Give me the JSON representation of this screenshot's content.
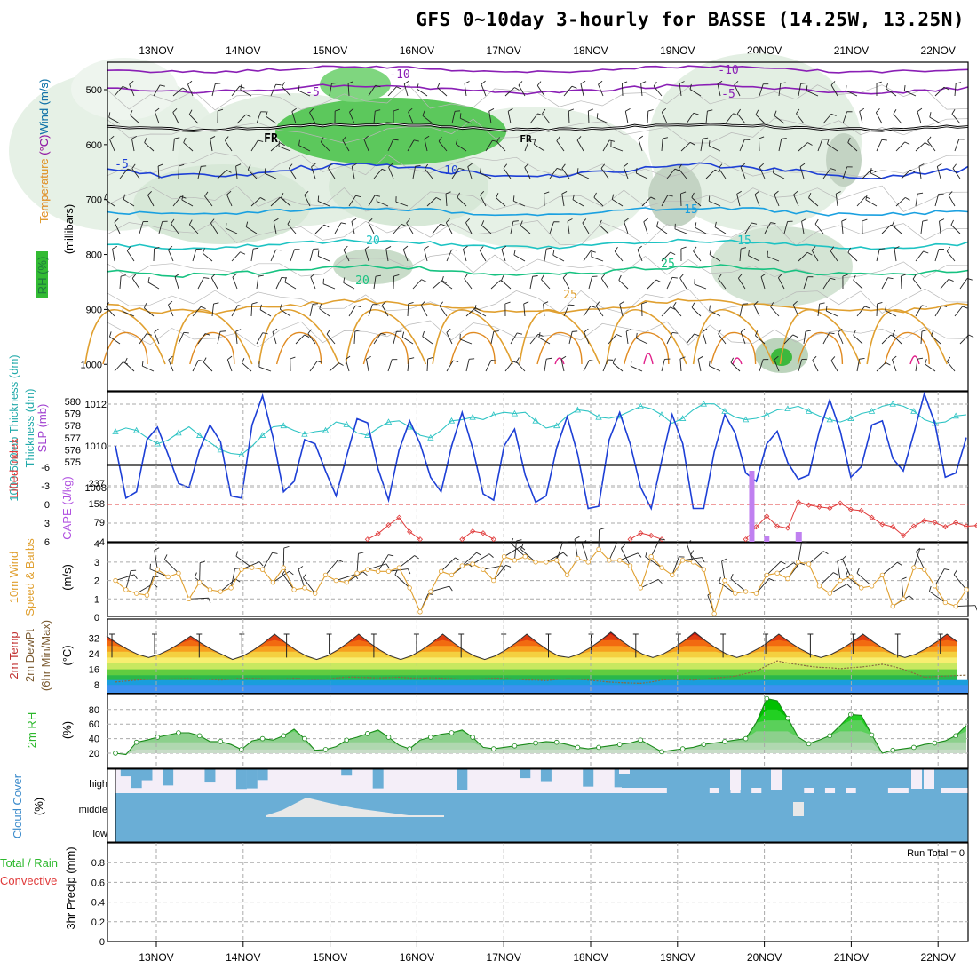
{
  "title": "GFS 0~10day 3-hourly for BASSE (14.25W, 13.25N)",
  "run_total_text": "Run Total = 0",
  "colors": {
    "purple": "#8a1fb5",
    "blue": "#1d3fd6",
    "lightblue": "#1aa0e0",
    "cyan": "#1ec3c3",
    "green": "#17c281",
    "orange": "#e0a030",
    "magenta": "#e0208a",
    "red": "#e03a3a",
    "cloud": "#6aaed6",
    "rhgreen": "#2db82d"
  },
  "chart_data": [
    {
      "type": "area",
      "name": "upper-air",
      "labels": {
        "wind": "Wind (m/s)",
        "temp": "Temperature (°C)",
        "rh": "RH (%)",
        "press": "(millibars)"
      },
      "dates": [
        "13NOV",
        "14NOV",
        "15NOV",
        "16NOV",
        "17NOV",
        "18NOV",
        "19NOV",
        "20NOV",
        "21NOV",
        "22NOV"
      ],
      "ylim": [
        1000,
        450
      ],
      "yticks": [
        "500",
        "600",
        "700",
        "800",
        "900",
        "1000"
      ],
      "isotherm_labels": [
        "-10",
        "-5",
        "FR",
        "-5",
        "10",
        "15",
        "20",
        "25"
      ]
    },
    {
      "type": "line",
      "name": "thickness-slp",
      "ylabel": "1000-500mb Thickness (dm)",
      "ylabel2": "SLP (mb)",
      "ticks_thk": [
        "580",
        "579",
        "578",
        "577",
        "576",
        "575"
      ],
      "ticks_slp": [
        "1012",
        "1010",
        "1008"
      ],
      "thickness": [
        577.5,
        577.8,
        577.6,
        577.0,
        576.5,
        576.8,
        577.4,
        577.9,
        577.2,
        576.6,
        576.0,
        575.7,
        575.6,
        576.3,
        577.2,
        577.9,
        578.0,
        577.6,
        577.3,
        577.5,
        577.6,
        578.3,
        578.1,
        577.4,
        577.2,
        577.8,
        578.3,
        578.4,
        577.9,
        577.2,
        577.0,
        577.6,
        578.4,
        578.5,
        578.7,
        578.5,
        578.9,
        579.1,
        579.0,
        579.1,
        578.4,
        577.8,
        578.0,
        578.8,
        579.3,
        579.2,
        578.7,
        578.6,
        578.8,
        579.2,
        579.6,
        579.4,
        578.9,
        578.2,
        578.6,
        579.3,
        579.8,
        579.8,
        579.2,
        578.7,
        578.5,
        578.6,
        578.9,
        579.3,
        579.4,
        579.6,
        579.2,
        578.8,
        578.5,
        578.3,
        578.6,
        579.0,
        579.2,
        579.6,
        579.8,
        579.6,
        579.2,
        578.5,
        578.2,
        578.3,
        578.8,
        578.9
      ],
      "slp": [
        1010.0,
        1007.5,
        1007.8,
        1010.3,
        1010.9,
        1009.6,
        1008.2,
        1008.0,
        1009.8,
        1011.0,
        1010.2,
        1007.6,
        1007.5,
        1011.0,
        1012.4,
        1010.4,
        1007.8,
        1008.3,
        1010.3,
        1010.1,
        1008.8,
        1007.6,
        1009.5,
        1011.3,
        1011.1,
        1008.9,
        1007.4,
        1009.8,
        1011.2,
        1010.1,
        1008.5,
        1007.8,
        1010.0,
        1011.6,
        1009.9,
        1007.7,
        1007.4,
        1010.0,
        1010.8,
        1008.6,
        1007.3,
        1007.6,
        1009.9,
        1011.4,
        1009.6,
        1007.0,
        1007.1,
        1010.3,
        1011.6,
        1010.1,
        1008.0,
        1007.0,
        1009.3,
        1011.5,
        1010.1,
        1007.0,
        1007.0,
        1009.7,
        1011.5,
        1010.6,
        1008.7,
        1008.3,
        1010.1,
        1010.7,
        1009.2,
        1008.4,
        1008.6,
        1010.7,
        1012.2,
        1010.7,
        1008.5,
        1009.0,
        1011.0,
        1011.2,
        1009.4,
        1008.8,
        1010.6,
        1012.5,
        1011.1,
        1008.5,
        1008.7,
        1010.4
      ]
    },
    {
      "type": "bar",
      "name": "cape-li",
      "ylabel": "Lifted Index",
      "ylabel2": "CAPE (J/kg)",
      "ticks_li": [
        "-6",
        "-3",
        "0",
        "3",
        "6"
      ],
      "ticks_cape": [
        "237",
        "158",
        "79",
        "4"
      ],
      "li_segments": [
        {
          "start": 24,
          "values": [
            5.6,
            4.7,
            3.3,
            2.1,
            4.4,
            5.6
          ]
        },
        {
          "start": 33,
          "values": [
            5.6,
            4.3,
            4.6,
            5.6
          ]
        },
        {
          "start": 49,
          "values": [
            5.6,
            4.6,
            5.0,
            5.6
          ]
        },
        {
          "start": 60,
          "values": [
            5.6,
            3.6,
            1.9,
            3.5,
            3.8,
            -0.4,
            0.1,
            0.4,
            0.6,
            -0.2,
            0.8,
            1.0,
            2.1,
            3.2,
            3.6,
            5.0,
            3.5,
            2.6,
            2.9,
            3.6,
            2.9,
            3.5,
            3.4,
            4.5,
            4.0,
            5.6
          ]
        }
      ],
      "cape_bars": [
        {
          "i": 61,
          "v": 0
        },
        {
          "i": 62,
          "v": 6
        },
        {
          "i": 64,
          "v": 0
        },
        {
          "i": 65,
          "v": 190
        },
        {
          "i": 66,
          "v": 0
        }
      ]
    },
    {
      "type": "line",
      "name": "wind-10m",
      "ylabel": "10m Wind Speed & Barbs",
      "units": "(m/s)",
      "ticks": [
        "4",
        "3",
        "2",
        "1",
        "0"
      ],
      "speed": [
        2.0,
        1.5,
        1.3,
        1.2,
        2.6,
        2.2,
        2.4,
        1.0,
        1.9,
        1.5,
        1.4,
        1.6,
        2.6,
        2.7,
        2.6,
        1.9,
        2.7,
        1.5,
        1.6,
        1.3,
        2.3,
        2.0,
        1.9,
        2.4,
        2.6,
        2.5,
        2.5,
        2.7,
        1.6,
        0.3,
        1.4,
        2.5,
        2.3,
        2.8,
        2.9,
        2.6,
        2.0,
        3.3,
        3.1,
        3.3,
        3.0,
        3.0,
        3.1,
        2.3,
        3.2,
        3.0,
        3.7,
        3.1,
        3.1,
        2.8,
        1.6,
        3.3,
        2.7,
        2.3,
        3.1,
        3.0,
        2.6,
        0.2,
        2.0,
        1.3,
        1.4,
        1.3,
        2.3,
        2.4,
        2.1,
        3.0,
        2.9,
        1.7,
        1.3,
        2.0,
        2.2,
        1.6,
        1.7,
        2.3,
        0.6,
        1.0,
        2.7,
        2.6,
        1.7,
        0.8,
        0.6,
        1.5
      ]
    },
    {
      "type": "area",
      "name": "temp-2m",
      "ylabel": "2m Temp",
      "ylabel2": "2m DewPt",
      "ylabel3": "(6hr Min/Max)",
      "units": "(°C)",
      "ticks": [
        "32",
        "24",
        "16",
        "8"
      ],
      "temp_max": [
        33,
        34,
        34,
        35,
        34
      ],
      "temp_min": [
        22,
        21,
        21,
        22,
        22
      ],
      "dew": [
        9.5,
        10.0,
        10.5,
        10.8,
        10.9,
        11.0,
        11.2,
        11.3,
        11.0,
        10.8,
        10.5,
        11.0,
        11.5,
        11.4,
        11.2,
        11.0,
        11.1,
        11.5,
        11.0,
        10.8,
        11.0,
        11.6,
        12.0,
        12.0,
        11.8,
        11.6,
        11.8,
        12.0,
        11.6,
        11.5,
        11.7,
        11.5,
        11.3,
        11.0,
        10.8,
        11.2,
        11.5,
        11.4,
        11.0,
        10.6,
        10.5,
        10.2,
        10.8,
        11.2,
        11.0,
        10.5,
        10.0,
        9.5,
        9.2,
        9.0,
        8.8,
        9.5,
        10.5,
        11.0,
        10.8,
        10.5,
        11.0,
        11.5,
        12.0,
        12.5,
        13.8,
        15.0,
        17.8,
        20.3,
        19.2,
        18.4,
        17.6,
        17.0,
        16.8,
        16.3,
        16.8,
        17.2,
        17.8,
        18.6,
        17.5,
        16.0,
        14.0,
        12.0,
        12.3,
        12.5,
        12.8,
        13.0
      ]
    },
    {
      "type": "area",
      "name": "rh-2m",
      "ylabel": "2m RH",
      "units": "(%)",
      "ticks": [
        "80",
        "60",
        "40",
        "20"
      ],
      "rh": [
        20,
        18,
        35,
        38,
        42,
        45,
        48,
        48,
        44,
        36,
        36,
        32,
        25,
        37,
        40,
        38,
        44,
        53,
        40,
        24,
        25,
        29,
        38,
        42,
        47,
        52,
        42,
        31,
        26,
        38,
        42,
        46,
        48,
        52,
        42,
        28,
        26,
        28,
        30,
        32,
        34,
        36,
        35,
        32,
        28,
        26,
        28,
        30,
        32,
        34,
        38,
        30,
        22,
        24,
        26,
        28,
        32,
        34,
        36,
        38,
        40,
        62,
        95,
        92,
        68,
        42,
        33,
        38,
        44,
        58,
        73,
        72,
        45,
        20,
        24,
        26,
        28,
        32,
        34,
        37,
        44,
        58
      ]
    },
    {
      "type": "bar",
      "name": "cloud-cover",
      "ylabel": "Cloud Cover",
      "units": "(%)",
      "levels": [
        "high",
        "middle",
        "low"
      ]
    },
    {
      "type": "bar",
      "name": "precip",
      "ylabel": "3hr Precip (mm)",
      "series_labels": [
        "Total / Rain",
        "Convective"
      ],
      "ticks": [
        "0.8",
        "0.6",
        "0.4",
        "0.2",
        "0"
      ],
      "ylim": [
        0,
        1.0
      ],
      "values": []
    }
  ]
}
